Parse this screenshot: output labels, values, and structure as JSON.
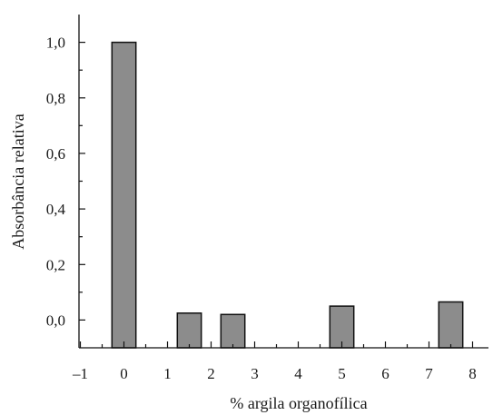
{
  "chart_data": {
    "type": "bar",
    "xlabel": "% argila organofílica",
    "ylabel": "Absorbância relativa",
    "xlim": [
      -1,
      8.5
    ],
    "ylim": [
      -0.1,
      1.1
    ],
    "x_ticks": [
      -1,
      0,
      1,
      2,
      3,
      4,
      5,
      6,
      7,
      8
    ],
    "x_tick_labels": [
      "–1",
      "0",
      "1",
      "2",
      "3",
      "4",
      "5",
      "6",
      "7",
      "8"
    ],
    "y_ticks": [
      0.0,
      0.2,
      0.4,
      0.6,
      0.8,
      1.0
    ],
    "y_tick_labels": [
      "0,0",
      "0,2",
      "0,4",
      "0,6",
      "0,8",
      "1,0"
    ],
    "bar_width": 0.55,
    "bars": [
      {
        "x": 0,
        "value": 1.0
      },
      {
        "x": 1.5,
        "value": 0.025
      },
      {
        "x": 2.5,
        "value": 0.02
      },
      {
        "x": 5,
        "value": 0.05
      },
      {
        "x": 7.5,
        "value": 0.065
      }
    ],
    "bar_color": "#8c8c8c",
    "bar_edge_color": "#111111",
    "grid": false,
    "legend": "none"
  }
}
